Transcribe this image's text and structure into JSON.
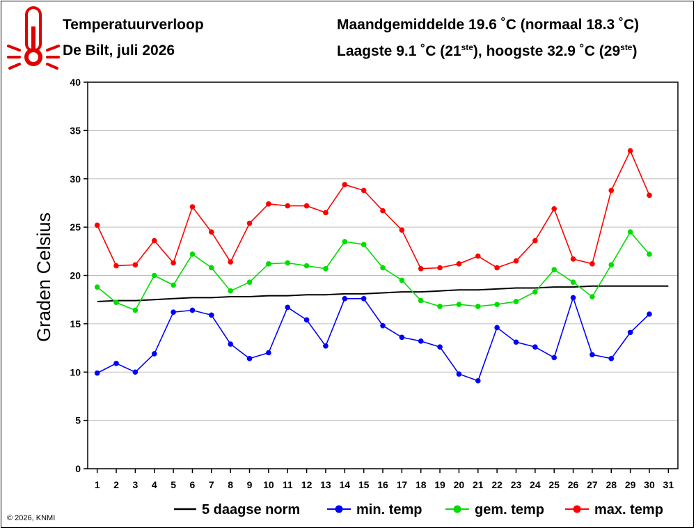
{
  "header": {
    "title": "Temperatuurverloop",
    "subtitle": "De Bilt, juli 2026",
    "monthly_mean": "Maandgemiddelde 19.6 ˚C (normaal 18.3 ˚C)",
    "extremes_prefix": "Laagste 9.1 ˚C (21",
    "extremes_sup1": "ste",
    "extremes_middle": "), hoogste 32.9 ˚C (29",
    "extremes_sup2": "ste",
    "extremes_suffix": ")"
  },
  "footer": {
    "copyright": "© 2026, KNMI"
  },
  "icons": {
    "thermometer": "thermometer-icon"
  },
  "colors": {
    "min": "#0000ff",
    "mean": "#00dd00",
    "max": "#ff0000",
    "norm": "#000000",
    "grid": "#bdbdbd"
  },
  "chart_data": {
    "type": "line",
    "title": "Temperatuurverloop",
    "ylabel": "Graden Celsius",
    "xlabel": "",
    "ylim": [
      0,
      40
    ],
    "yticks": [
      0,
      5,
      10,
      15,
      20,
      25,
      30,
      35,
      40
    ],
    "xlim": [
      0.5,
      31.5
    ],
    "x_ticks": [
      "1",
      "2",
      "3",
      "4",
      "5",
      "6",
      "7",
      "8",
      "9",
      "10",
      "11",
      "12",
      "13",
      "14",
      "15",
      "16",
      "17",
      "18",
      "19",
      "20",
      "21",
      "22",
      "23",
      "24",
      "25",
      "26",
      "27",
      "28",
      "29",
      "30",
      "31"
    ],
    "grid": "horizontal",
    "legend_position": "bottom",
    "series": [
      {
        "name": "5 daagse norm",
        "color": "#000000",
        "markers": false,
        "x": [
          1,
          2,
          3,
          4,
          5,
          6,
          7,
          8,
          9,
          10,
          11,
          12,
          13,
          14,
          15,
          16,
          17,
          18,
          19,
          20,
          21,
          22,
          23,
          24,
          25,
          26,
          27,
          28,
          29,
          30,
          31
        ],
        "values": [
          17.3,
          17.4,
          17.4,
          17.5,
          17.6,
          17.7,
          17.7,
          17.8,
          17.8,
          17.9,
          17.9,
          18.0,
          18.0,
          18.1,
          18.1,
          18.2,
          18.3,
          18.3,
          18.4,
          18.5,
          18.5,
          18.6,
          18.7,
          18.7,
          18.8,
          18.8,
          18.9,
          18.9,
          18.9,
          18.9,
          18.9
        ]
      },
      {
        "name": "min. temp",
        "color": "#0000ff",
        "markers": true,
        "x": [
          1,
          2,
          3,
          4,
          5,
          6,
          7,
          8,
          9,
          10,
          11,
          12,
          13,
          14,
          15,
          16,
          17,
          18,
          19,
          20,
          21,
          22,
          23,
          24,
          25,
          26,
          27,
          28,
          29,
          30
        ],
        "values": [
          9.9,
          10.9,
          10.0,
          11.9,
          16.2,
          16.4,
          15.9,
          12.9,
          11.4,
          12.0,
          16.7,
          15.4,
          12.7,
          17.6,
          17.6,
          14.8,
          13.6,
          13.2,
          12.6,
          9.8,
          9.1,
          14.6,
          13.1,
          12.6,
          11.5,
          17.7,
          11.8,
          11.4,
          14.1,
          16.0
        ]
      },
      {
        "name": "gem. temp",
        "color": "#00dd00",
        "markers": true,
        "x": [
          1,
          2,
          3,
          4,
          5,
          6,
          7,
          8,
          9,
          10,
          11,
          12,
          13,
          14,
          15,
          16,
          17,
          18,
          19,
          20,
          21,
          22,
          23,
          24,
          25,
          26,
          27,
          28,
          29,
          30
        ],
        "values": [
          18.8,
          17.2,
          16.4,
          20.0,
          19.0,
          22.2,
          20.8,
          18.4,
          19.3,
          21.2,
          21.3,
          21.0,
          20.7,
          23.5,
          23.2,
          20.8,
          19.5,
          17.4,
          16.8,
          17.0,
          16.8,
          17.0,
          17.3,
          18.3,
          20.6,
          19.3,
          17.8,
          21.1,
          24.5,
          22.2
        ]
      },
      {
        "name": "max. temp",
        "color": "#ff0000",
        "markers": true,
        "x": [
          1,
          2,
          3,
          4,
          5,
          6,
          7,
          8,
          9,
          10,
          11,
          12,
          13,
          14,
          15,
          16,
          17,
          18,
          19,
          20,
          21,
          22,
          23,
          24,
          25,
          26,
          27,
          28,
          29,
          30
        ],
        "values": [
          25.2,
          21.0,
          21.1,
          23.6,
          21.3,
          27.1,
          24.5,
          21.4,
          25.4,
          27.4,
          27.2,
          27.2,
          26.5,
          29.4,
          28.8,
          26.7,
          24.7,
          20.7,
          20.8,
          21.2,
          22.0,
          20.8,
          21.5,
          23.6,
          26.9,
          21.7,
          21.2,
          28.8,
          32.9,
          28.3
        ]
      }
    ]
  }
}
